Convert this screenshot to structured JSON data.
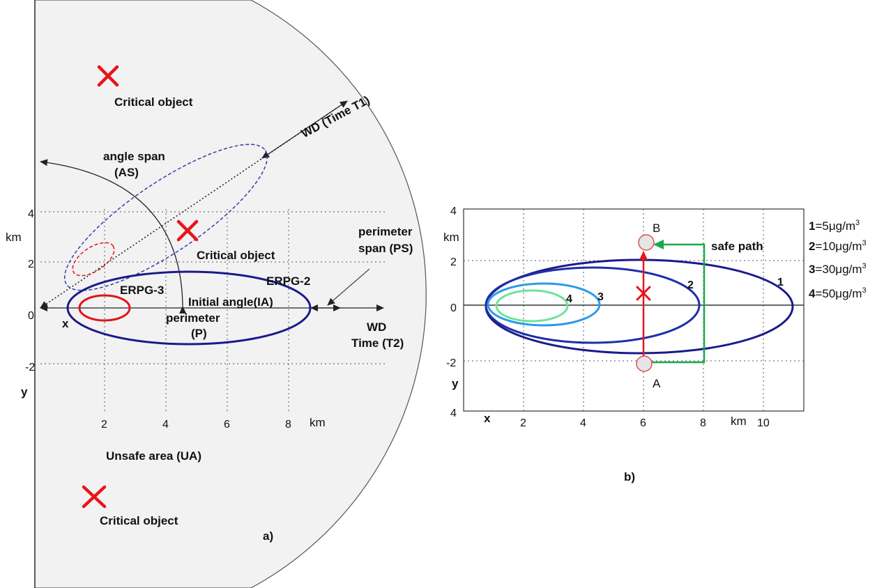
{
  "panel_a": {
    "caption": "a)",
    "critical_object_label": "Critical object",
    "wd_time_t1": "WD (Time T1)",
    "angle_span_line1": "angle span",
    "angle_span_line2": "(AS)",
    "km_y": "km",
    "x_label": "x",
    "y_label": "y",
    "erpg3": "ERPG-3",
    "erpg2": "ERPG-2",
    "initial_angle": "Initial angle(IA)",
    "perimeter_line1": "perimeter",
    "perimeter_line2": "(P)",
    "perimeter_span_line1": "perimeter",
    "perimeter_span_line2": "span (PS)",
    "wd_line1": "WD",
    "wd_line2": "Time (T2)",
    "km_x": "km",
    "unsafe_area": "Unsafe area (UA)",
    "y_ticks": [
      "4",
      "2",
      "0",
      "-2"
    ],
    "x_ticks": [
      "2",
      "4",
      "6",
      "8"
    ],
    "colors": {
      "field": "#f2f2f2",
      "plume": "#1a1a8c",
      "dashed_plume": "#3a3aa8",
      "erpg3": "#e0141a",
      "cross": "#e8141a"
    }
  },
  "panel_b": {
    "caption": "b)",
    "km_y": "km",
    "x_label": "x",
    "y_label": "y",
    "km_x": "km",
    "y_ticks_left": [
      "4",
      "2",
      "0",
      "-2",
      "4"
    ],
    "x_ticks": [
      "2",
      "4",
      "6",
      "8",
      "10"
    ],
    "point_a": "A",
    "point_b": "B",
    "safe_path": "safe path",
    "contour_labels": [
      "1",
      "2",
      "3",
      "4"
    ],
    "legend": [
      {
        "num": "1",
        "text": "=5μg/m",
        "sup": "3"
      },
      {
        "num": "2",
        "text": "=10μg/m",
        "sup": "3"
      },
      {
        "num": "3",
        "text": "=30μg/m",
        "sup": "3"
      },
      {
        "num": "4",
        "text": "=50μg/m",
        "sup": "3"
      }
    ],
    "colors": {
      "c1": "#1a1a8c",
      "c2": "#1e2ea8",
      "c3": "#2b9be8",
      "c4": "#6ee39a",
      "path_unsafe": "#e8141a",
      "path_safe": "#1aa84a"
    }
  }
}
